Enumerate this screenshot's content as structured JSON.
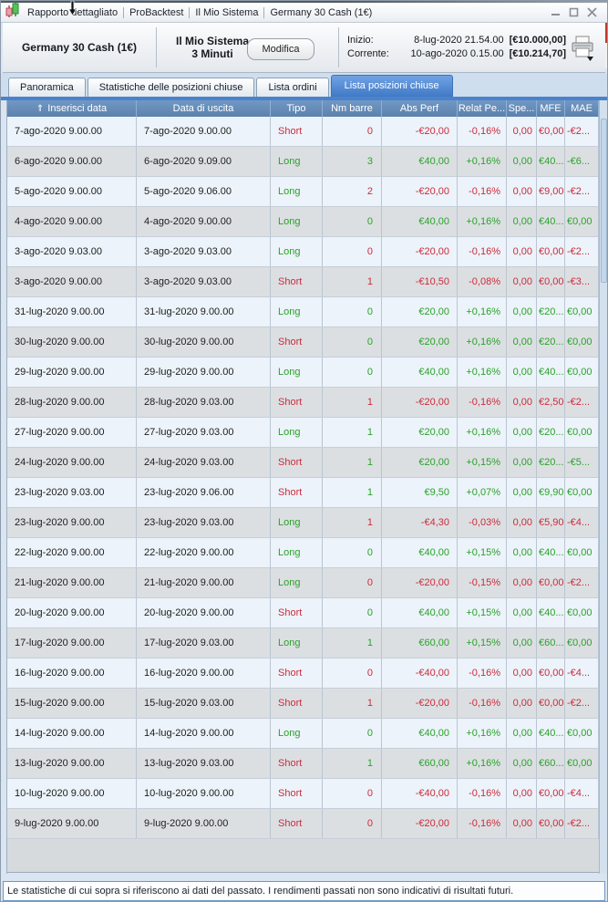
{
  "window": {
    "title_segments": [
      "Rapporto dettagliato",
      "ProBacktest",
      "Il Mio Sistema",
      "Germany 30 Cash (1€)"
    ]
  },
  "header": {
    "instrument": "Germany 30 Cash (1€)",
    "system_name": "Il Mio Sistema",
    "system_timeframe": "3 Minuti",
    "modify_button": "Modifica",
    "start_label": "Inizio:",
    "start_datetime": "8-lug-2020 21.54.00",
    "start_equity": "[€10.000,00]",
    "current_label": "Corrente:",
    "current_datetime": "10-ago-2020 0.15.00",
    "current_equity": "[€10.214,70]"
  },
  "tabs": [
    {
      "label": "Panoramica",
      "active": false
    },
    {
      "label": "Statistiche delle posizioni chiuse",
      "active": false
    },
    {
      "label": "Lista ordini",
      "active": false
    },
    {
      "label": "Lista posizioni chiuse",
      "active": true
    }
  ],
  "table": {
    "columns": [
      "Inserisci data",
      "Data di uscita",
      "Tipo",
      "Nm barre",
      "Abs Perf",
      "Relat Pe...",
      "Spe...",
      "MFE",
      "MAE"
    ],
    "column_keys": [
      "entry-date",
      "exit-date",
      "type",
      "num-bars",
      "abs-perf",
      "relat-perf",
      "spread",
      "mfe",
      "mae"
    ],
    "sort_column": "Inserisci data",
    "rows": [
      [
        "7-ago-2020 9.00.00",
        "7-ago-2020 9.00.00",
        "Short",
        "0",
        "-€20,00",
        "-0,16%",
        "0,00",
        "€0,00",
        "-€2..."
      ],
      [
        "6-ago-2020 9.00.00",
        "6-ago-2020 9.09.00",
        "Long",
        "3",
        "€40,00",
        "+0,16%",
        "0,00",
        "€40...",
        "-€6..."
      ],
      [
        "5-ago-2020 9.00.00",
        "5-ago-2020 9.06.00",
        "Long",
        "2",
        "-€20,00",
        "-0,16%",
        "0,00",
        "€9,00",
        "-€2..."
      ],
      [
        "4-ago-2020 9.00.00",
        "4-ago-2020 9.00.00",
        "Long",
        "0",
        "€40,00",
        "+0,16%",
        "0,00",
        "€40...",
        "€0,00"
      ],
      [
        "3-ago-2020 9.03.00",
        "3-ago-2020 9.03.00",
        "Long",
        "0",
        "-€20,00",
        "-0,16%",
        "0,00",
        "€0,00",
        "-€2..."
      ],
      [
        "3-ago-2020 9.00.00",
        "3-ago-2020 9.03.00",
        "Short",
        "1",
        "-€10,50",
        "-0,08%",
        "0,00",
        "€0,00",
        "-€3..."
      ],
      [
        "31-lug-2020 9.00.00",
        "31-lug-2020 9.00.00",
        "Long",
        "0",
        "€20,00",
        "+0,16%",
        "0,00",
        "€20...",
        "€0,00"
      ],
      [
        "30-lug-2020 9.00.00",
        "30-lug-2020 9.00.00",
        "Short",
        "0",
        "€20,00",
        "+0,16%",
        "0,00",
        "€20...",
        "€0,00"
      ],
      [
        "29-lug-2020 9.00.00",
        "29-lug-2020 9.00.00",
        "Long",
        "0",
        "€40,00",
        "+0,16%",
        "0,00",
        "€40...",
        "€0,00"
      ],
      [
        "28-lug-2020 9.00.00",
        "28-lug-2020 9.03.00",
        "Short",
        "1",
        "-€20,00",
        "-0,16%",
        "0,00",
        "€2,50",
        "-€2..."
      ],
      [
        "27-lug-2020 9.00.00",
        "27-lug-2020 9.03.00",
        "Long",
        "1",
        "€20,00",
        "+0,16%",
        "0,00",
        "€20...",
        "€0,00"
      ],
      [
        "24-lug-2020 9.00.00",
        "24-lug-2020 9.03.00",
        "Short",
        "1",
        "€20,00",
        "+0,15%",
        "0,00",
        "€20...",
        "-€5..."
      ],
      [
        "23-lug-2020 9.03.00",
        "23-lug-2020 9.06.00",
        "Short",
        "1",
        "€9,50",
        "+0,07%",
        "0,00",
        "€9,90",
        "€0,00"
      ],
      [
        "23-lug-2020 9.00.00",
        "23-lug-2020 9.03.00",
        "Long",
        "1",
        "-€4,30",
        "-0,03%",
        "0,00",
        "€5,90",
        "-€4..."
      ],
      [
        "22-lug-2020 9.00.00",
        "22-lug-2020 9.00.00",
        "Long",
        "0",
        "€40,00",
        "+0,15%",
        "0,00",
        "€40...",
        "€0,00"
      ],
      [
        "21-lug-2020 9.00.00",
        "21-lug-2020 9.00.00",
        "Long",
        "0",
        "-€20,00",
        "-0,15%",
        "0,00",
        "€0,00",
        "-€2..."
      ],
      [
        "20-lug-2020 9.00.00",
        "20-lug-2020 9.00.00",
        "Short",
        "0",
        "€40,00",
        "+0,15%",
        "0,00",
        "€40...",
        "€0,00"
      ],
      [
        "17-lug-2020 9.00.00",
        "17-lug-2020 9.03.00",
        "Long",
        "1",
        "€60,00",
        "+0,15%",
        "0,00",
        "€60...",
        "€0,00"
      ],
      [
        "16-lug-2020 9.00.00",
        "16-lug-2020 9.00.00",
        "Short",
        "0",
        "-€40,00",
        "-0,16%",
        "0,00",
        "€0,00",
        "-€4..."
      ],
      [
        "15-lug-2020 9.00.00",
        "15-lug-2020 9.03.00",
        "Short",
        "1",
        "-€20,00",
        "-0,16%",
        "0,00",
        "€0,00",
        "-€2..."
      ],
      [
        "14-lug-2020 9.00.00",
        "14-lug-2020 9.00.00",
        "Long",
        "0",
        "€40,00",
        "+0,16%",
        "0,00",
        "€40...",
        "€0,00"
      ],
      [
        "13-lug-2020 9.00.00",
        "13-lug-2020 9.03.00",
        "Short",
        "1",
        "€60,00",
        "+0,16%",
        "0,00",
        "€60...",
        "€0,00"
      ],
      [
        "10-lug-2020 9.00.00",
        "10-lug-2020 9.00.00",
        "Short",
        "0",
        "-€40,00",
        "-0,16%",
        "0,00",
        "€0,00",
        "-€4..."
      ],
      [
        "9-lug-2020 9.00.00",
        "9-lug-2020 9.00.00",
        "Short",
        "0",
        "-€20,00",
        "-0,16%",
        "0,00",
        "€0,00",
        "-€2..."
      ]
    ]
  },
  "footer": {
    "disclaimer": "Le statistiche di cui sopra si riferiscono ai dati del passato. I rendimenti passati non sono indicativi di risultati futuri."
  },
  "icons": {
    "sort_glyph": "⇑"
  },
  "colors": {
    "positive_green": "#2aa22a",
    "negative_red": "#cb2c3c",
    "accent_blue": "#4a82cc",
    "table_header_blue": "#6a90bc",
    "row_odd": "#ecf3fa",
    "row_even": "#dcdfe2"
  }
}
